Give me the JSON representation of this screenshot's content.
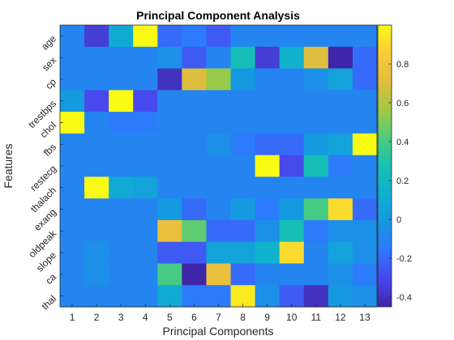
{
  "chart_data": {
    "type": "heatmap",
    "title": "Principal Component Analysis",
    "xlabel": "Principal Components",
    "ylabel": "Features",
    "x_categories": [
      "1",
      "2",
      "3",
      "4",
      "5",
      "6",
      "7",
      "8",
      "9",
      "10",
      "11",
      "12",
      "13"
    ],
    "y_categories": [
      "age",
      "sex",
      "cp",
      "trestbps",
      "chol",
      "fbs",
      "restecg",
      "thalach",
      "exang",
      "oldpeak",
      "slope",
      "ca",
      "thal"
    ],
    "colormap": "parula",
    "clim": [
      -0.45,
      1.0
    ],
    "colorbar_ticks": [
      0.8,
      0.6,
      0.4,
      0.2,
      0,
      -0.2,
      -0.4
    ],
    "colorbar_tick_labels": [
      "0.8",
      "0.6",
      "0.4",
      "0.2",
      "0",
      "-0.2",
      "-0.4"
    ],
    "values": [
      [
        -0.1,
        -0.35,
        0.1,
        1.0,
        -0.2,
        -0.15,
        -0.25,
        -0.1,
        -0.1,
        -0.1,
        -0.1,
        -0.1,
        -0.1
      ],
      [
        -0.1,
        -0.1,
        -0.1,
        -0.1,
        -0.05,
        -0.25,
        -0.1,
        0.25,
        -0.35,
        0.15,
        0.7,
        -0.45,
        -0.2
      ],
      [
        -0.1,
        -0.1,
        -0.1,
        -0.1,
        -0.4,
        0.7,
        0.55,
        0.0,
        -0.1,
        -0.1,
        -0.05,
        0.05,
        -0.2
      ],
      [
        0.0,
        -0.3,
        1.0,
        -0.3,
        -0.1,
        -0.1,
        -0.1,
        -0.1,
        -0.1,
        -0.1,
        -0.1,
        -0.1,
        -0.1
      ],
      [
        1.0,
        -0.1,
        -0.15,
        -0.15,
        -0.1,
        -0.1,
        -0.1,
        -0.1,
        -0.1,
        -0.1,
        -0.1,
        -0.1,
        -0.1
      ],
      [
        -0.1,
        -0.1,
        -0.1,
        -0.1,
        -0.1,
        -0.1,
        -0.05,
        -0.15,
        -0.2,
        -0.2,
        0.0,
        0.05,
        1.0
      ],
      [
        -0.1,
        -0.1,
        -0.1,
        -0.1,
        -0.1,
        -0.1,
        -0.1,
        -0.1,
        1.0,
        -0.3,
        0.25,
        -0.15,
        -0.1
      ],
      [
        -0.1,
        1.0,
        0.1,
        0.05,
        -0.1,
        -0.1,
        -0.1,
        -0.1,
        -0.1,
        -0.1,
        -0.1,
        -0.1,
        -0.1
      ],
      [
        -0.1,
        -0.1,
        -0.1,
        -0.1,
        0.0,
        -0.2,
        -0.1,
        0.0,
        -0.15,
        0.0,
        0.4,
        0.9,
        -0.2
      ],
      [
        -0.1,
        -0.1,
        -0.1,
        -0.1,
        0.75,
        0.45,
        -0.2,
        -0.2,
        -0.05,
        0.25,
        -0.15,
        -0.05,
        -0.05
      ],
      [
        -0.1,
        -0.05,
        -0.1,
        -0.1,
        -0.25,
        -0.25,
        0.05,
        0.05,
        0.15,
        0.9,
        -0.1,
        0.05,
        -0.05
      ],
      [
        -0.1,
        -0.05,
        -0.1,
        -0.1,
        0.4,
        -0.45,
        0.75,
        -0.2,
        -0.1,
        -0.1,
        -0.1,
        -0.05,
        -0.15
      ],
      [
        -0.1,
        -0.1,
        -0.1,
        -0.1,
        0.1,
        -0.15,
        -0.15,
        0.95,
        -0.05,
        -0.25,
        -0.4,
        0.0,
        -0.05
      ]
    ]
  }
}
